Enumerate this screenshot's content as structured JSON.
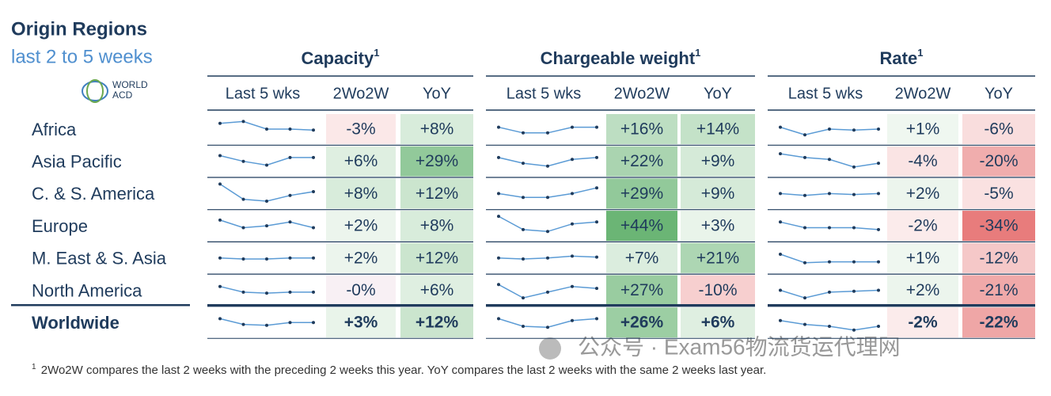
{
  "header": {
    "title": "Origin Regions",
    "subtitle": "last 2 to 5 weeks",
    "logo_lines": [
      "WORLD",
      "ACD"
    ]
  },
  "groups": [
    {
      "title": "Capacity",
      "mark": "1",
      "columns": [
        "Last 5 wks",
        "2Wo2W",
        "YoY"
      ]
    },
    {
      "title": "Chargeable weight",
      "mark": "1",
      "columns": [
        "Last 5 wks",
        "2Wo2W",
        "YoY"
      ]
    },
    {
      "title": "Rate",
      "mark": "1",
      "columns": [
        "Last 5 wks",
        "2Wo2W",
        "YoY"
      ]
    }
  ],
  "rows": [
    {
      "label": "Africa",
      "cells": [
        {
          "trend": [
            8,
            9,
            5,
            5,
            4.5
          ],
          "wo2w": "-3%",
          "yoy": "+8%"
        },
        {
          "trend": [
            6,
            3,
            3,
            6,
            6
          ],
          "wo2w": "+16%",
          "yoy": "+14%"
        },
        {
          "trend": [
            6,
            2,
            5,
            4.5,
            5
          ],
          "wo2w": "+1%",
          "yoy": "-6%"
        }
      ]
    },
    {
      "label": "Asia Pacific",
      "cells": [
        {
          "trend": [
            8,
            5,
            3,
            7,
            7
          ],
          "wo2w": "+6%",
          "yoy": "+29%"
        },
        {
          "trend": [
            7,
            4,
            2.5,
            6,
            7
          ],
          "wo2w": "+22%",
          "yoy": "+9%"
        },
        {
          "trend": [
            9,
            7,
            6,
            2,
            4
          ],
          "wo2w": "-4%",
          "yoy": "-20%"
        }
      ]
    },
    {
      "label": "C. & S. America",
      "cells": [
        {
          "trend": [
            10,
            2,
            1,
            4,
            6
          ],
          "wo2w": "+8%",
          "yoy": "+12%"
        },
        {
          "trend": [
            5,
            3,
            3,
            5,
            8
          ],
          "wo2w": "+29%",
          "yoy": "+9%"
        },
        {
          "trend": [
            5,
            4,
            5,
            4.5,
            5
          ],
          "wo2w": "+2%",
          "yoy": "-5%"
        }
      ]
    },
    {
      "label": "Europe",
      "cells": [
        {
          "trend": [
            8,
            4,
            5,
            7,
            4
          ],
          "wo2w": "+2%",
          "yoy": "+8%"
        },
        {
          "trend": [
            10,
            3,
            2,
            6,
            7
          ],
          "wo2w": "+44%",
          "yoy": "+3%"
        },
        {
          "trend": [
            7,
            4,
            4,
            4,
            3
          ],
          "wo2w": "-2%",
          "yoy": "-34%"
        }
      ]
    },
    {
      "label": "M. East & S. Asia",
      "cells": [
        {
          "trend": [
            5,
            4.5,
            4.5,
            5,
            5
          ],
          "wo2w": "+2%",
          "yoy": "+12%"
        },
        {
          "trend": [
            5,
            4.5,
            5,
            6,
            5.5
          ],
          "wo2w": "+7%",
          "yoy": "+21%"
        },
        {
          "trend": [
            7,
            2.5,
            3,
            3,
            3
          ],
          "wo2w": "+1%",
          "yoy": "-12%"
        }
      ]
    },
    {
      "label": "North America",
      "cells": [
        {
          "trend": [
            7,
            4,
            3.5,
            4,
            4
          ],
          "wo2w": "-0%",
          "yoy": "+6%"
        },
        {
          "trend": [
            8,
            1,
            4,
            7,
            6
          ],
          "wo2w": "+27%",
          "yoy": "-10%"
        },
        {
          "trend": [
            5,
            1,
            4,
            4.5,
            5
          ],
          "wo2w": "+2%",
          "yoy": "-21%"
        }
      ]
    },
    {
      "label": "Worldwide",
      "cells": [
        {
          "trend": [
            7,
            4,
            3.5,
            5,
            5
          ],
          "wo2w": "+3%",
          "yoy": "+12%"
        },
        {
          "trend": [
            7,
            3,
            2.5,
            6,
            7
          ],
          "wo2w": "+26%",
          "yoy": "+6%"
        },
        {
          "trend": [
            6,
            4,
            3,
            1,
            3
          ],
          "wo2w": "-2%",
          "yoy": "-22%"
        }
      ]
    }
  ],
  "watermark": "公众号 · Exam56物流货运代理网",
  "footnote": {
    "mark": "1",
    "text": "2Wo2W compares the last 2 weeks with the preceding 2 weeks this year. YoY compares the last 2 weeks with the same 2 weeks last year."
  }
}
